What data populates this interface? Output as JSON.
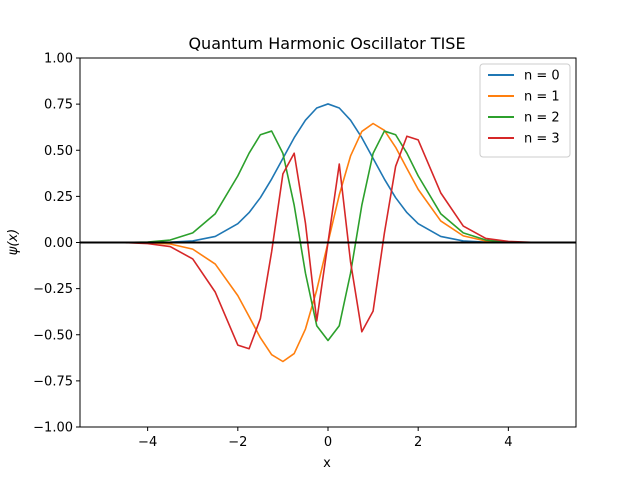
{
  "chart_data": {
    "type": "line",
    "title": "Quantum Harmonic Oscillator TISE",
    "xlabel": "x",
    "ylabel": "ψ(x)",
    "xlim": [
      -5.5,
      5.5
    ],
    "ylim": [
      -1.0,
      1.0
    ],
    "grid": false,
    "legend_position": "top-right",
    "x_ticks": [
      -4,
      -2,
      0,
      2,
      4
    ],
    "x_tick_labels": [
      "−4",
      "−2",
      "0",
      "2",
      "4"
    ],
    "y_ticks": [
      -1.0,
      -0.75,
      -0.5,
      -0.25,
      0.0,
      0.25,
      0.5,
      0.75,
      1.0
    ],
    "y_tick_labels": [
      "−1.00",
      "−0.75",
      "−0.50",
      "−0.25",
      "0.00",
      "0.25",
      "0.50",
      "0.75",
      "1.00"
    ],
    "horizontal_line": {
      "y": 0.0,
      "color": "#000000"
    },
    "x": [
      -5.0,
      -4.5,
      -4.0,
      -3.5,
      -3.0,
      -2.5,
      -2.0,
      -1.75,
      -1.5,
      -1.25,
      -1.0,
      -0.75,
      -0.5,
      -0.25,
      0.0,
      0.25,
      0.5,
      0.75,
      1.0,
      1.25,
      1.5,
      1.75,
      2.0,
      2.5,
      3.0,
      3.5,
      4.0,
      4.5,
      5.0
    ],
    "series": [
      {
        "name": "n = 0",
        "color": "#1f77b4",
        "values": [
          0.0,
          0.0,
          0.0003,
          0.0016,
          0.0084,
          0.033,
          0.102,
          0.162,
          0.243,
          0.344,
          0.456,
          0.568,
          0.663,
          0.729,
          0.751,
          0.729,
          0.663,
          0.568,
          0.456,
          0.344,
          0.243,
          0.162,
          0.102,
          0.033,
          0.0084,
          0.0016,
          0.0003,
          0.0,
          0.0
        ]
      },
      {
        "name": "n = 1",
        "color": "#ff7f0e",
        "values": [
          -0.0,
          -0.0001,
          -0.002,
          -0.008,
          -0.036,
          -0.117,
          -0.288,
          -0.401,
          -0.516,
          -0.608,
          -0.645,
          -0.602,
          -0.469,
          -0.258,
          0.0,
          0.258,
          0.469,
          0.602,
          0.645,
          0.608,
          0.516,
          0.401,
          0.288,
          0.117,
          0.036,
          0.008,
          0.002,
          0.0001,
          0.0
        ]
      },
      {
        "name": "n = 2",
        "color": "#2ca02c",
        "values": [
          0.0,
          0.0004,
          0.0026,
          0.0134,
          0.052,
          0.156,
          0.361,
          0.484,
          0.584,
          0.604,
          0.483,
          0.202,
          -0.166,
          -0.451,
          -0.531,
          -0.451,
          -0.166,
          0.202,
          0.483,
          0.604,
          0.584,
          0.484,
          0.361,
          0.156,
          0.052,
          0.0134,
          0.0026,
          0.0004,
          0.0
        ]
      },
      {
        "name": "n = 3",
        "color": "#d62728",
        "values": [
          -0.0,
          -0.0008,
          -0.006,
          -0.022,
          -0.089,
          -0.269,
          -0.556,
          -0.576,
          -0.413,
          -0.05,
          0.372,
          0.484,
          0.105,
          -0.425,
          0.0,
          0.425,
          -0.105,
          -0.484,
          -0.372,
          0.05,
          0.413,
          0.576,
          0.556,
          0.269,
          0.089,
          0.022,
          0.006,
          0.0008,
          0.0
        ]
      }
    ]
  }
}
